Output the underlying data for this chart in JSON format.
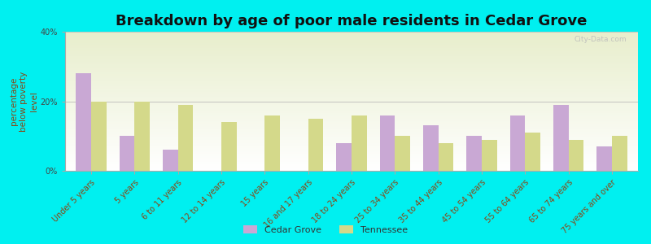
{
  "title": "Breakdown by age of poor male residents in Cedar Grove",
  "ylabel": "percentage\nbelow poverty\nlevel",
  "categories": [
    "Under 5 years",
    "5 years",
    "6 to 11 years",
    "12 to 14 years",
    "15 years",
    "16 and 17 years",
    "18 to 24 years",
    "25 to 34 years",
    "35 to 44 years",
    "45 to 54 years",
    "55 to 64 years",
    "65 to 74 years",
    "75 years and over"
  ],
  "cedar_grove": [
    28,
    10,
    6,
    0,
    0,
    0,
    8,
    16,
    13,
    10,
    16,
    19,
    7
  ],
  "tennessee": [
    20,
    20,
    19,
    14,
    16,
    15,
    16,
    10,
    8,
    9,
    11,
    9,
    10
  ],
  "cedar_grove_color": "#c9a8d4",
  "tennessee_color": "#d4d98a",
  "background_color": "#00f0f0",
  "plot_bg_top": "#e8eecc",
  "plot_bg_bottom": "#ffffff",
  "ylim": [
    0,
    40
  ],
  "yticks": [
    0,
    20,
    40
  ],
  "ytick_labels": [
    "0%",
    "20%",
    "40%"
  ],
  "title_fontsize": 13,
  "axis_label_fontsize": 7.5,
  "tick_fontsize": 7,
  "legend_labels": [
    "Cedar Grove",
    "Tennessee"
  ],
  "watermark": "City-Data.com"
}
